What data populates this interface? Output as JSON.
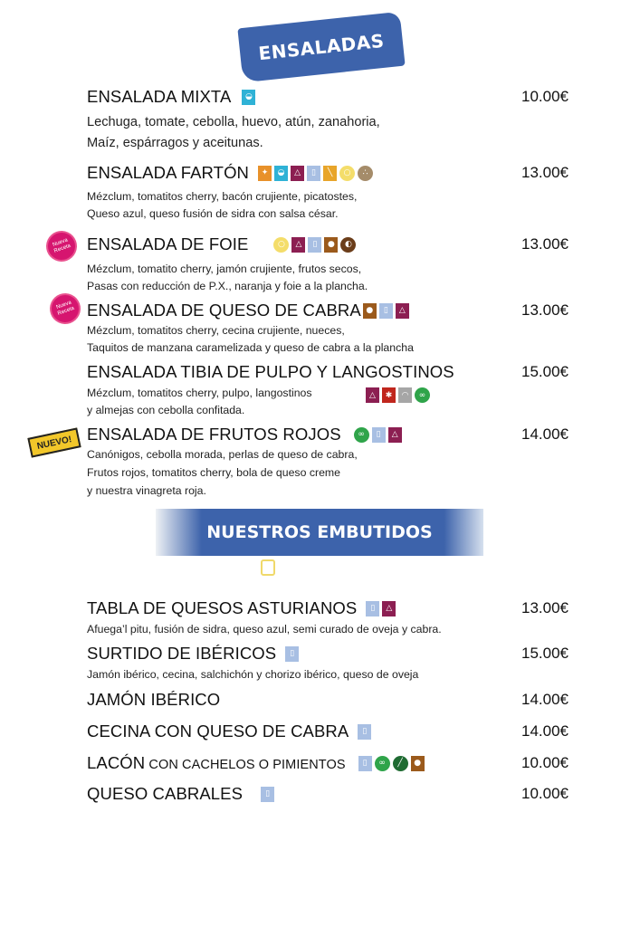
{
  "sections": {
    "salads_title": "ENSALADAS",
    "embutidos_title": "NUESTROS EMBUTIDOS"
  },
  "badges": {
    "new_recipe": "Nueva Receta",
    "new": "NUEVO!"
  },
  "colors": {
    "banner": "#3d63ab",
    "new_recipe_badge": "#d6156f",
    "new_badge": "#f2c72a"
  },
  "allergen_icons": {
    "gluten": {
      "color": "#e8912a",
      "shape": "square",
      "glyph": "✦"
    },
    "egg": {
      "color": "#2fb2d6",
      "shape": "square",
      "glyph": "◒"
    },
    "sulphites": {
      "color": "#8c1f52",
      "shape": "square",
      "glyph": "△"
    },
    "milk": {
      "color": "#a8bfe3",
      "shape": "square",
      "glyph": "▯"
    },
    "mustard": {
      "color": "#e8a52a",
      "shape": "square",
      "glyph": "╲"
    },
    "lupin": {
      "color": "#f4dd6a",
      "shape": "circle",
      "glyph": "○"
    },
    "sesame": {
      "color": "#a58c6a",
      "shape": "circle",
      "glyph": "∴"
    },
    "nuts": {
      "color": "#9b5a1c",
      "shape": "square",
      "glyph": "●"
    },
    "peanut": {
      "color": "#6b3d1a",
      "shape": "circle",
      "glyph": "◐"
    },
    "crustacean": {
      "color": "#c0261d",
      "shape": "square",
      "glyph": "✱"
    },
    "mollusc": {
      "color": "#a6a6a6",
      "shape": "square",
      "glyph": "◠"
    },
    "celery": {
      "color": "#2fa44a",
      "shape": "circle",
      "glyph": "∞"
    },
    "mustard_seed": {
      "color": "#1f6b32",
      "shape": "circle",
      "glyph": "╱"
    }
  },
  "salads": [
    {
      "name": "ENSALADA MIXTA",
      "price": "10.00€",
      "icons": [
        "egg"
      ],
      "desc": [
        "Lechuga, tomate, cebolla, huevo, atún, zanahoria,",
        "Maíz, espárragos y aceitunas."
      ]
    },
    {
      "name": "ENSALADA FARTÓN",
      "price": "13.00€",
      "icons": [
        "gluten",
        "egg",
        "sulphites",
        "milk",
        "mustard",
        "lupin",
        "sesame"
      ],
      "desc": [
        "Mézclum, tomatitos cherry, bacón crujiente, picatostes,",
        "Queso azul, queso fusión de sidra con salsa césar."
      ]
    },
    {
      "name": "ENSALADA DE FOIE",
      "price": "13.00€",
      "badge": "new_recipe",
      "icons": [
        "lupin",
        "sulphites",
        "milk",
        "nuts",
        "peanut"
      ],
      "desc": [
        "Mézclum, tomatito cherry, jamón crujiente, frutos secos,",
        "Pasas con reducción de P.X., naranja y foie a la plancha."
      ]
    },
    {
      "name": "ENSALADA DE QUESO DE CABRA",
      "price": "13.00€",
      "badge": "new_recipe",
      "icons": [
        "nuts",
        "milk",
        "sulphites"
      ],
      "desc": [
        "Mézclum, tomatitos cherry, cecina crujiente, nueces,",
        "Taquitos de manzana caramelizada y queso de cabra a la plancha"
      ]
    },
    {
      "name": "ENSALADA TIBIA DE PULPO Y LANGOSTINOS",
      "price": "15.00€",
      "icons": [
        "sulphites",
        "crustacean",
        "mollusc",
        "celery"
      ],
      "desc": [
        "Mézclum, tomatitos cherry, pulpo, langostinos",
        "y almejas con cebolla confitada."
      ]
    },
    {
      "name": "ENSALADA DE FRUTOS ROJOS",
      "price": "14.00€",
      "badge": "new",
      "icons": [
        "celery",
        "milk",
        "sulphites"
      ],
      "desc": [
        "Canónigos, cebolla morada, perlas de queso de cabra,",
        "Frutos rojos, tomatitos cherry, bola de queso creme",
        "y nuestra vinagreta roja."
      ]
    }
  ],
  "embutidos": [
    {
      "name": "TABLA DE QUESOS ASTURIANOS",
      "price": "13.00€",
      "icons": [
        "milk",
        "sulphites"
      ],
      "desc": [
        "Afuega’l pitu, fusión de sidra, queso azul, semi curado de oveja y cabra."
      ]
    },
    {
      "name": "SURTIDO DE IBÉRICOS",
      "price": "15.00€",
      "icons": [
        "milk"
      ],
      "desc": [
        "Jamón ibérico, cecina, salchichón y chorizo ibérico, queso de oveja"
      ]
    },
    {
      "name": "JAMÓN IBÉRICO",
      "price": "14.00€",
      "icons": [],
      "desc": []
    },
    {
      "name": "CECINA CON QUESO DE CABRA",
      "price": "14.00€",
      "icons": [
        "milk"
      ],
      "desc": []
    },
    {
      "name": "LACÓN",
      "name_suffix": "CON CACHELOS O PIMIENTOS",
      "price": "10.00€",
      "icons": [
        "milk",
        "celery",
        "mustard_seed",
        "nuts"
      ],
      "desc": []
    },
    {
      "name": "QUESO CABRALES",
      "price": "10.00€",
      "icons": [
        "milk"
      ],
      "desc": []
    }
  ]
}
